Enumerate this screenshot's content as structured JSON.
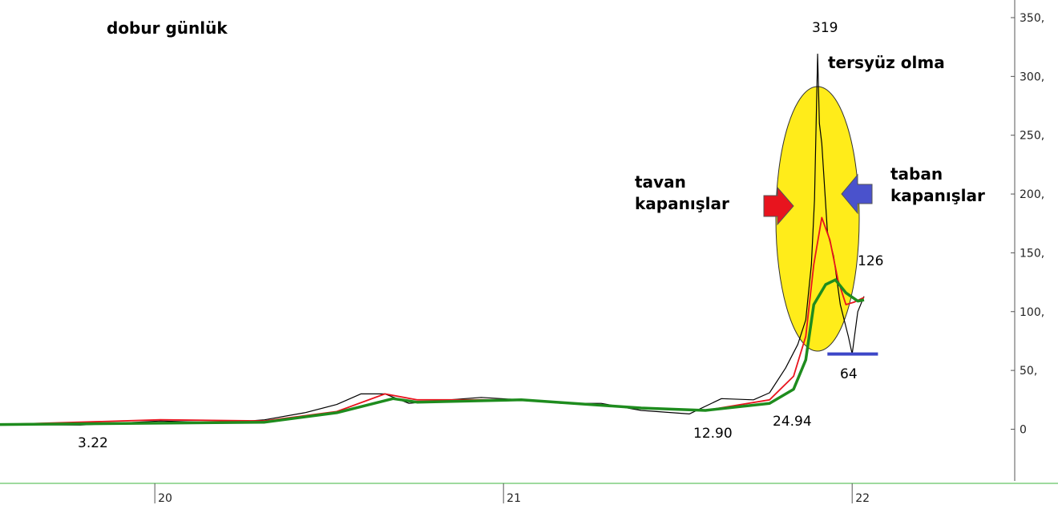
{
  "chart_data": {
    "type": "line",
    "title": "dobur günlük",
    "xlim": [
      19.556,
      22.457
    ],
    "xticks": [
      {
        "value": 20,
        "label": "20"
      },
      {
        "value": 21,
        "label": "21"
      },
      {
        "value": 22,
        "label": "22"
      }
    ],
    "ylim": [
      -44,
      365
    ],
    "yticks": [
      0,
      {
        "value": 50,
        "label": "50,"
      },
      {
        "value": 100,
        "label": "100,"
      },
      {
        "value": 150,
        "label": "150,"
      },
      {
        "value": 200,
        "label": "200,"
      },
      {
        "value": 250,
        "label": "250,"
      },
      {
        "value": 300,
        "label": "300,"
      },
      {
        "value": 350,
        "label": "350,"
      }
    ],
    "series": [
      {
        "color": "#000000",
        "x": [
          19.556,
          19.786,
          20.016,
          20.2,
          20.315,
          20.43,
          20.522,
          20.591,
          20.66,
          20.729,
          20.844,
          20.936,
          21.051,
          21.166,
          21.28,
          21.395,
          21.533,
          21.625,
          21.717,
          21.763,
          21.809,
          21.844,
          21.867,
          21.883,
          21.892,
          21.901,
          21.906,
          21.913,
          21.929,
          21.947,
          21.966,
          21.989,
          22.0,
          22.016,
          22.034
        ],
        "values": [
          4,
          3.5,
          7,
          5.5,
          8,
          14,
          21,
          30,
          30,
          22,
          25,
          27,
          25,
          22,
          22,
          16,
          13,
          26,
          25,
          31,
          52,
          72,
          93,
          140,
          195,
          319,
          260,
          243,
          168,
          147,
          106,
          79,
          64,
          100,
          113
        ]
      },
      {
        "color": "#e8141e",
        "x": [
          19.556,
          20.016,
          20.315,
          20.522,
          20.66,
          20.752,
          21.051,
          21.395,
          21.579,
          21.763,
          21.832,
          21.867,
          21.89,
          21.913,
          21.936,
          21.959,
          21.982,
          22.005,
          22.034
        ],
        "values": [
          4,
          8,
          7,
          15,
          30,
          25,
          25,
          18,
          16,
          25,
          45,
          79,
          140,
          180,
          161,
          127,
          106,
          108,
          112
        ]
      },
      {
        "color": "#1e8c1e",
        "x": [
          19.556,
          20.315,
          20.522,
          20.683,
          20.752,
          21.051,
          21.395,
          21.579,
          21.763,
          21.832,
          21.867,
          21.89,
          21.924,
          21.952,
          21.982,
          22.016,
          22.034
        ],
        "values": [
          4,
          6,
          14,
          26,
          23,
          25,
          18,
          16,
          22,
          34,
          59,
          106,
          123,
          127,
          116,
          109,
          110
        ]
      }
    ],
    "support_line": {
      "y": 64,
      "x": [
        21.929,
        22.074
      ],
      "color": "#3c46c8"
    },
    "annotations": [
      "319",
      "tersyüz olma",
      "tavan kapanışlar",
      "taban kapanışlar",
      "126",
      "64",
      "3.22",
      "12.90",
      "24.94"
    ]
  }
}
